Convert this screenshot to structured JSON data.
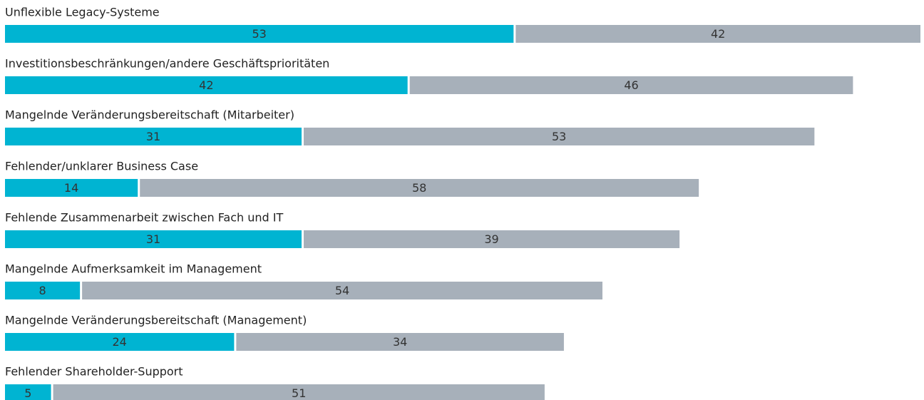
{
  "chart_data": {
    "type": "stacked-bar-horizontal",
    "categories": [
      "Unflexible Legacy-Systeme",
      "Investitionsbeschränkungen/andere Geschäftsprioritäten",
      "Mangelnde Veränderungsbereitschaft (Mitarbeiter)",
      "Fehlender/unklarer Business Case",
      "Fehlende Zusammenarbeit zwischen Fach und IT",
      "Mangelnde Aufmerksamkeit im Management",
      "Mangelnde Veränderungsbereitschaft (Management)",
      "Fehlender Shareholder-Support"
    ],
    "series": [
      {
        "color": "#00b4d2",
        "values": [
          53,
          42,
          31,
          14,
          31,
          8,
          24,
          5
        ]
      },
      {
        "color": "#a7b0ba",
        "values": [
          42,
          46,
          53,
          58,
          39,
          54,
          34,
          51
        ]
      }
    ]
  }
}
